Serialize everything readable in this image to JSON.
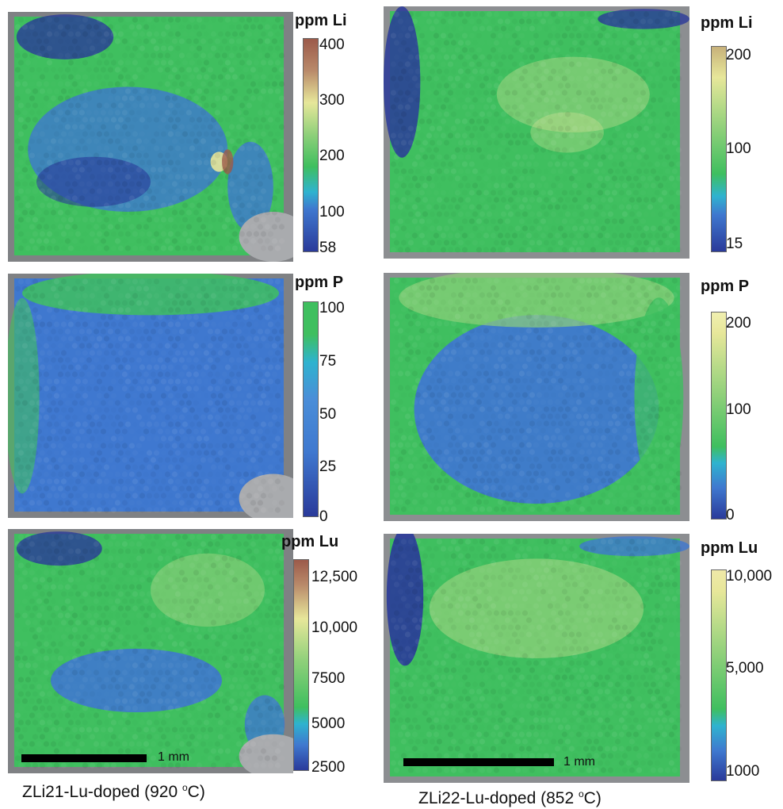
{
  "samples": [
    {
      "caption_text": "ZLi21-Lu-doped (920 ",
      "caption_sup": "o",
      "caption_unit": "C)"
    },
    {
      "caption_text": "ZLi22-Lu-doped (852 ",
      "caption_sup": "o",
      "caption_unit": "C)"
    }
  ],
  "colorbars": [
    {
      "title": "ppm Li",
      "ticks": [
        "400",
        "300",
        "200",
        "100",
        "58"
      ]
    },
    {
      "title": "ppm Li",
      "ticks": [
        "200",
        "100",
        "15"
      ]
    },
    {
      "title": "ppm P",
      "ticks": [
        "100",
        "75",
        "50",
        "25",
        "0"
      ]
    },
    {
      "title": "ppm P",
      "ticks": [
        "200",
        "100",
        "0"
      ]
    },
    {
      "title": "ppm Lu",
      "ticks": [
        "12,500",
        "10,000",
        "7500",
        "5000",
        "2500"
      ]
    },
    {
      "title": "ppm Lu",
      "ticks": [
        "10,000",
        "5,000",
        "1000"
      ]
    }
  ],
  "scale_bars": [
    {
      "label": "1 mm"
    },
    {
      "label": "1 mm"
    }
  ],
  "colors": {
    "low": "#2a3a9a",
    "blue": "#3f78cf",
    "cyan": "#2fb3cf",
    "green": "#3fbf5f",
    "light_green": "#8fd07a",
    "yellow": "#e7e79a",
    "brown": "#9c5a4a",
    "background_gray": "#8c8c8c"
  }
}
